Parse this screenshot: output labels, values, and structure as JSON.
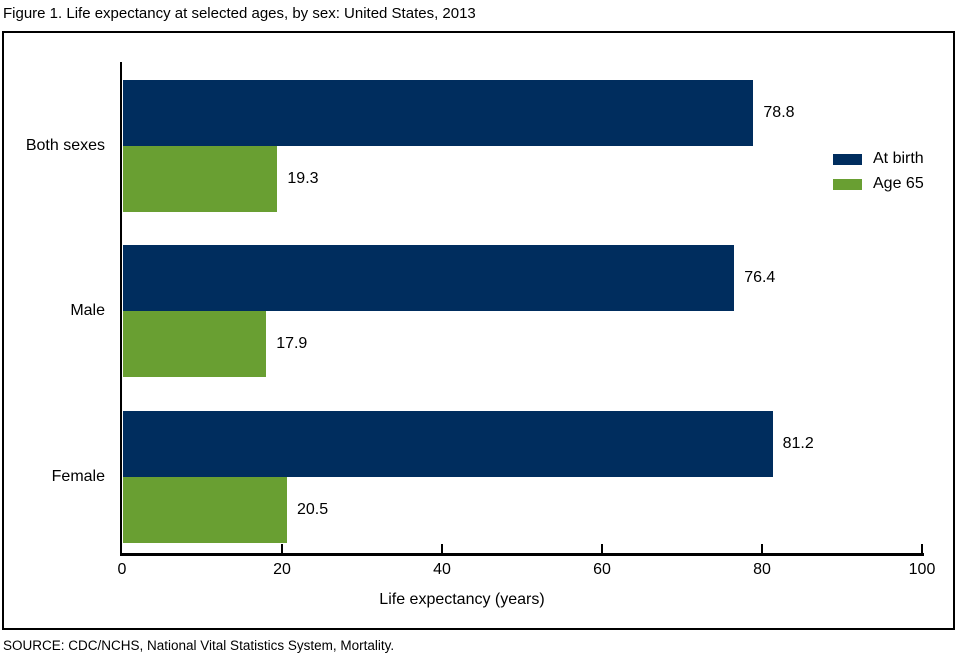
{
  "title": "Figure 1. Life expectancy at selected ages, by sex: United States, 2013",
  "source_note": "SOURCE: CDC/NCHS, National Vital Statistics System, Mortality.",
  "chart_data": {
    "type": "bar",
    "orientation": "horizontal",
    "title": "Figure 1. Life expectancy at selected ages, by sex: United States, 2013",
    "categories": [
      "Both sexes",
      "Male",
      "Female"
    ],
    "series": [
      {
        "name": "At birth",
        "color": "#002d5e",
        "values": [
          78.8,
          76.4,
          81.2
        ]
      },
      {
        "name": "Age 65",
        "color": "#699f32",
        "values": [
          19.3,
          17.9,
          20.5
        ]
      }
    ],
    "value_labels": {
      "At birth": [
        "78.8",
        "76.4",
        "81.2"
      ],
      "Age 65": [
        "19.3",
        "17.9",
        "20.5"
      ]
    },
    "xlabel": "Life expectancy (years)",
    "xlim": [
      0,
      100
    ],
    "xticks": [
      0,
      20,
      40,
      60,
      80,
      100
    ],
    "legend": {
      "position": "right",
      "entries": [
        "At birth",
        "Age 65"
      ]
    },
    "grid": false,
    "value_labels_shown": true
  },
  "colors": {
    "at_birth": "#002d5e",
    "age_65": "#699f32",
    "axis": "#000000",
    "background": "#ffffff",
    "text": "#000000"
  }
}
